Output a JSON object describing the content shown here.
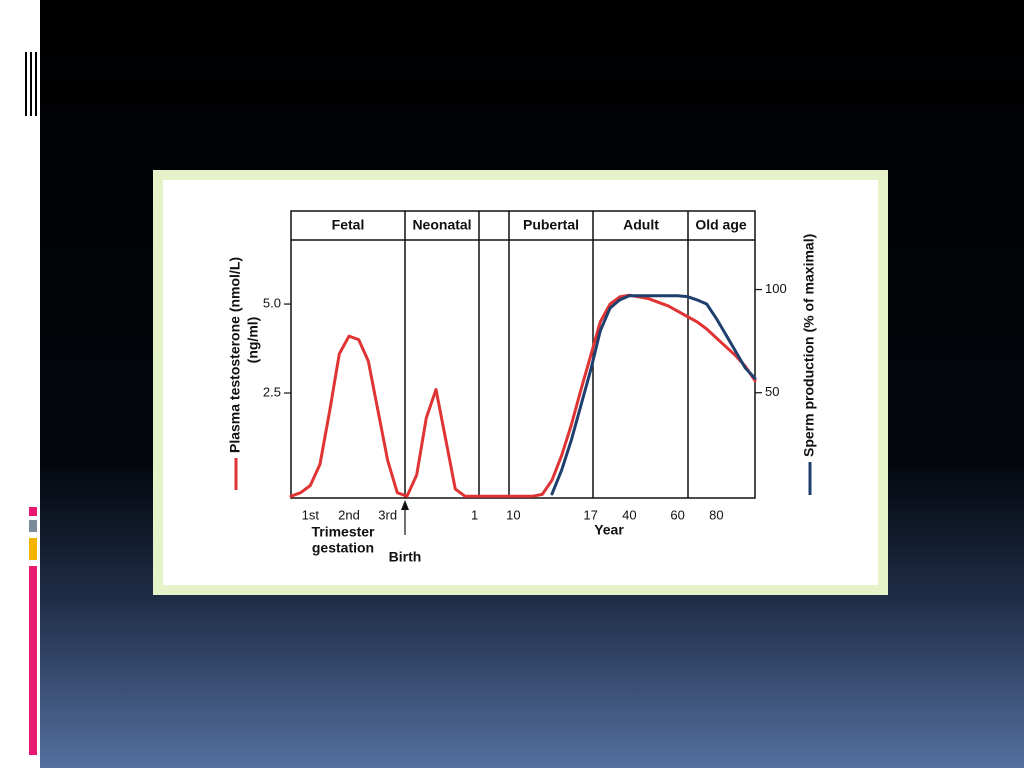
{
  "chart_data": {
    "type": "line",
    "periods": [
      "Fetal",
      "Neonatal",
      "Pubertal",
      "Adult",
      "Old age"
    ],
    "categories": [
      null,
      null,
      "1st",
      null,
      null,
      null,
      "2nd",
      null,
      null,
      null,
      "3rd",
      null,
      null,
      null,
      null,
      null,
      null,
      null,
      null,
      "1",
      null,
      null,
      null,
      "10",
      null,
      null,
      null,
      null,
      null,
      null,
      null,
      "17",
      null,
      null,
      null,
      "40",
      null,
      null,
      null,
      null,
      "60",
      null,
      null,
      null,
      "80",
      null,
      null,
      null,
      null
    ],
    "x_annotations": [
      "Trimester",
      "gestation",
      "Birth",
      "Year"
    ],
    "y_unit": "(ng/ml)",
    "series": [
      {
        "name": "Plasma testosterone (nmol/L)",
        "color": "#e03434",
        "values": [
          -0.4,
          -0.3,
          -0.1,
          0.5,
          2.0,
          3.6,
          4.1,
          4.0,
          3.4,
          2.0,
          0.6,
          -0.3,
          -0.4,
          0.2,
          1.8,
          2.6,
          1.2,
          -0.2,
          -0.4,
          -0.4,
          -0.4,
          -0.4,
          -0.4,
          -0.4,
          -0.4,
          -0.4,
          -0.35,
          0.05,
          0.75,
          1.6,
          2.6,
          3.55,
          4.5,
          5.0,
          5.2,
          5.25,
          5.2,
          5.15,
          5.05,
          4.95,
          4.8,
          4.65,
          4.5,
          4.3,
          4.05,
          3.8,
          3.55,
          3.25,
          2.85
        ]
      },
      {
        "name": "Sperm production (% of maximal)",
        "color": "#1f3f6e",
        "axis": "y2",
        "values": [
          null,
          null,
          null,
          null,
          null,
          null,
          null,
          null,
          null,
          null,
          null,
          null,
          null,
          null,
          null,
          null,
          null,
          null,
          null,
          null,
          null,
          null,
          null,
          null,
          null,
          null,
          null,
          1,
          12.6,
          27,
          44,
          61,
          80,
          91,
          95,
          97,
          97,
          97,
          97,
          97,
          97,
          96.6,
          95,
          93,
          86,
          78,
          70,
          62,
          57
        ]
      }
    ],
    "ylim": [
      -0.45,
      6.8
    ],
    "yticks": [
      2.5,
      {
        "value": 5,
        "label": "5.0"
      }
    ],
    "y2lim": [
      -1,
      124
    ],
    "y2ticks": [
      50,
      100
    ]
  }
}
